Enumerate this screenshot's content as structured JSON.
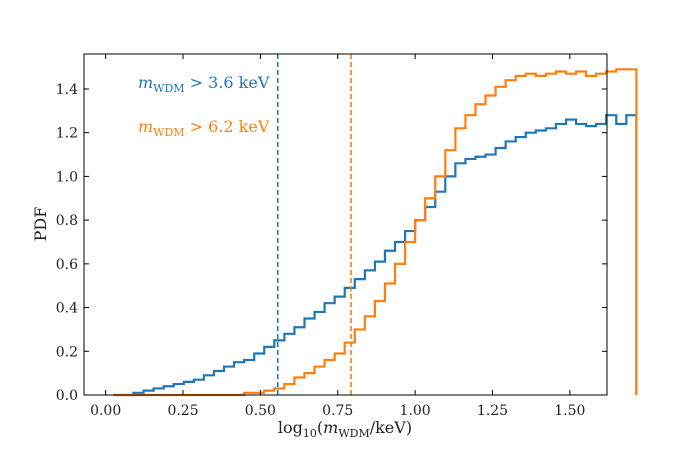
{
  "chart_data": {
    "type": "step",
    "xlabel": "log10(mWDM/keV)",
    "ylabel": "PDF",
    "xlim": [
      -0.07,
      1.62
    ],
    "ylim": [
      0.0,
      1.56
    ],
    "xticks": [
      "0.00",
      "0.25",
      "0.50",
      "0.75",
      "1.00",
      "1.25",
      "1.50"
    ],
    "xtick_values": [
      0.0,
      0.25,
      0.5,
      0.75,
      1.0,
      1.25,
      1.5
    ],
    "yticks": [
      "0.0",
      "0.2",
      "0.4",
      "0.6",
      "0.8",
      "1.0",
      "1.2",
      "1.4"
    ],
    "ytick_values": [
      0.0,
      0.2,
      0.4,
      0.6,
      0.8,
      1.0,
      1.2,
      1.4
    ],
    "x_edges_start": 0.025,
    "bin_width": 0.0325,
    "series": [
      {
        "name": "mWDM > 3.6 keV",
        "color": "#1f77b4",
        "threshold": 0.556,
        "values": [
          0.0,
          0.0,
          0.01,
          0.02,
          0.03,
          0.04,
          0.05,
          0.06,
          0.07,
          0.09,
          0.11,
          0.13,
          0.15,
          0.16,
          0.19,
          0.22,
          0.25,
          0.28,
          0.31,
          0.35,
          0.38,
          0.42,
          0.45,
          0.49,
          0.53,
          0.57,
          0.61,
          0.66,
          0.7,
          0.75,
          0.8,
          0.86,
          0.93,
          1.0,
          1.06,
          1.08,
          1.09,
          1.1,
          1.13,
          1.16,
          1.18,
          1.2,
          1.21,
          1.22,
          1.24,
          1.26,
          1.24,
          1.23,
          1.24,
          1.28,
          1.24,
          1.28
        ]
      },
      {
        "name": "mWDM > 6.2 keV",
        "color": "#ff7f0e",
        "threshold": 0.793,
        "values": [
          0.0,
          0.0,
          0.0,
          0.0,
          0.0,
          0.0,
          0.0,
          0.0,
          0.0,
          0.0,
          0.0,
          0.0,
          0.0,
          0.01,
          0.01,
          0.02,
          0.03,
          0.05,
          0.08,
          0.1,
          0.13,
          0.16,
          0.19,
          0.24,
          0.3,
          0.36,
          0.43,
          0.51,
          0.6,
          0.7,
          0.8,
          0.9,
          1.0,
          1.12,
          1.22,
          1.28,
          1.33,
          1.37,
          1.41,
          1.44,
          1.46,
          1.47,
          1.46,
          1.47,
          1.48,
          1.47,
          1.48,
          1.46,
          1.47,
          1.48,
          1.49,
          1.49
        ]
      }
    ],
    "legend": [
      {
        "prefix": "m",
        "subscript": "WDM",
        "text": " > 3.6 keV",
        "color": "#1f77b4"
      },
      {
        "prefix": "m",
        "subscript": "WDM",
        "text": " > 6.2 keV",
        "color": "#ff7f0e"
      }
    ],
    "legend_position": "top-left"
  }
}
